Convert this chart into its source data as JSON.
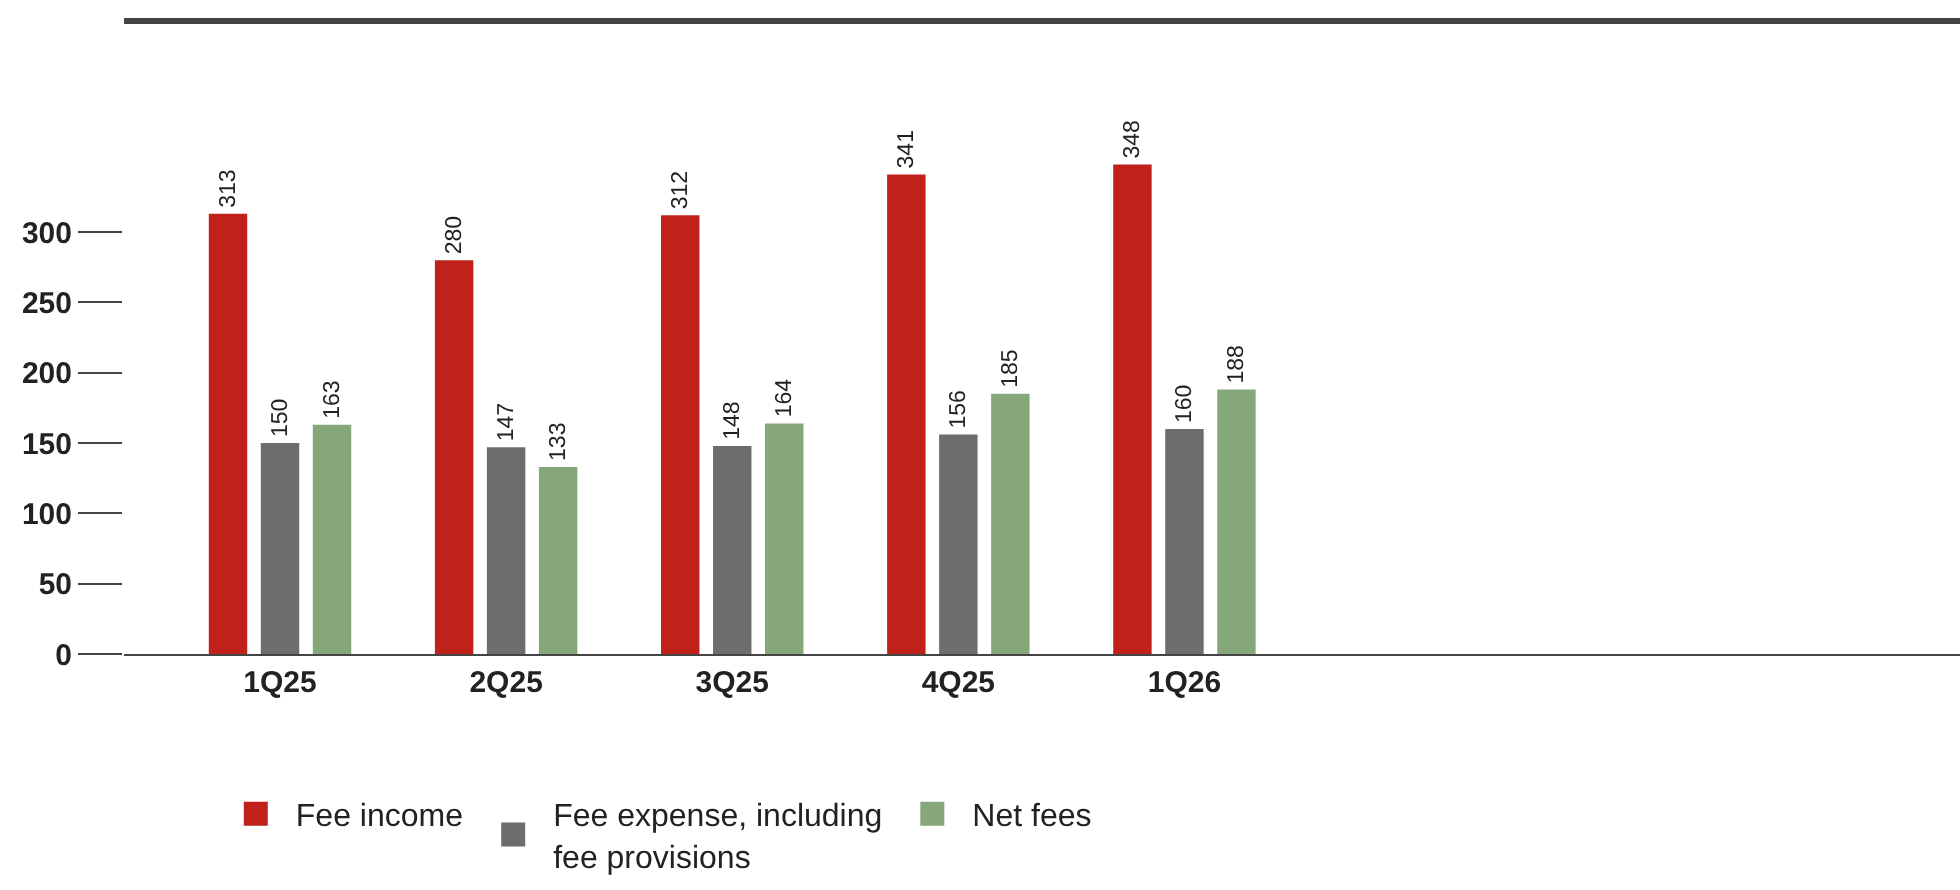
{
  "chart_data": {
    "type": "bar",
    "categories": [
      "1Q25",
      "2Q25",
      "3Q25",
      "4Q25",
      "1Q26"
    ],
    "series": [
      {
        "name": "Fee income",
        "color": "#c0211a",
        "values": [
          313,
          280,
          312,
          341,
          348
        ]
      },
      {
        "name": "Fee expense, including fee provisions",
        "color": "#6d6d6d",
        "values": [
          150,
          147,
          148,
          156,
          160
        ]
      },
      {
        "name": "Net fees",
        "color": "#86a779",
        "values": [
          163,
          133,
          164,
          185,
          188
        ]
      }
    ],
    "ylim": [
      0,
      448
    ],
    "yticks": [
      0,
      50,
      100,
      150,
      200,
      250,
      300
    ],
    "data_labels": true,
    "legend": "bottom"
  }
}
